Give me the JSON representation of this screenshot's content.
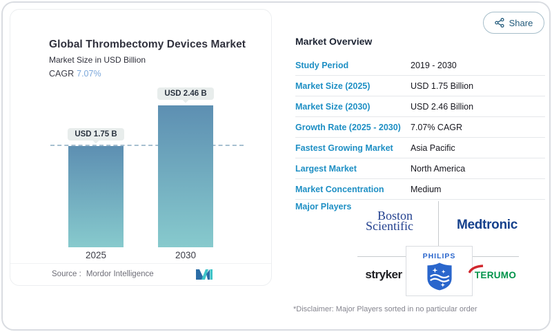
{
  "colors": {
    "label_blue": "#1e8fc4",
    "cagr_blue": "#7ba7da",
    "bar_gradient_top": "#5d8fb2",
    "bar_gradient_bottom": "#87cacd",
    "boston_navy": "#23418f",
    "medtronic_navy": "#16418c",
    "terumo_green": "#00934a",
    "philips_blue": "#2a66cc"
  },
  "share": {
    "label": "Share"
  },
  "chart_card": {
    "title": "Global Thrombectomy Devices Market",
    "subtitle": "Market Size in USD Billion",
    "cagr_label": "CAGR",
    "cagr_value": "7.07%",
    "source_label": "Source :",
    "source_name": "Mordor Intelligence",
    "bars": [
      {
        "year": "2025",
        "label": "USD 1.75 B"
      },
      {
        "year": "2030",
        "label": "USD 2.46 B"
      }
    ]
  },
  "chart_data": {
    "type": "bar",
    "title": "Global Thrombectomy Devices Market",
    "ylabel": "Market Size in USD Billion",
    "categories": [
      "2025",
      "2030"
    ],
    "values": [
      1.75,
      2.46
    ],
    "value_labels": [
      "USD 1.75 B",
      "USD 2.46 B"
    ],
    "cagr": "7.07%",
    "reference_line": 1.75,
    "ylim": [
      0,
      2.8
    ],
    "grid": false,
    "legend": "none"
  },
  "overview": {
    "title": "Market Overview",
    "rows": [
      {
        "label": "Study Period",
        "value": "2019 - 2030"
      },
      {
        "label": "Market Size (2025)",
        "value": "USD 1.75 Billion"
      },
      {
        "label": "Market Size (2030)",
        "value": "USD 2.46 Billion"
      },
      {
        "label": "Growth Rate (2025 - 2030)",
        "value": "7.07% CAGR"
      },
      {
        "label": "Fastest Growing Market",
        "value": "Asia Pacific"
      },
      {
        "label": "Largest Market",
        "value": "North America"
      },
      {
        "label": "Market Concentration",
        "value": "Medium"
      }
    ],
    "major_players_label": "Major Players",
    "players": {
      "boston_line1": "Boston",
      "boston_line2": "Scientific",
      "medtronic": "Medtronic",
      "stryker": "stryker",
      "philips": "PHILIPS",
      "terumo": "TERUMO"
    },
    "disclaimer": "*Disclaimer: Major Players sorted in no particular order"
  }
}
